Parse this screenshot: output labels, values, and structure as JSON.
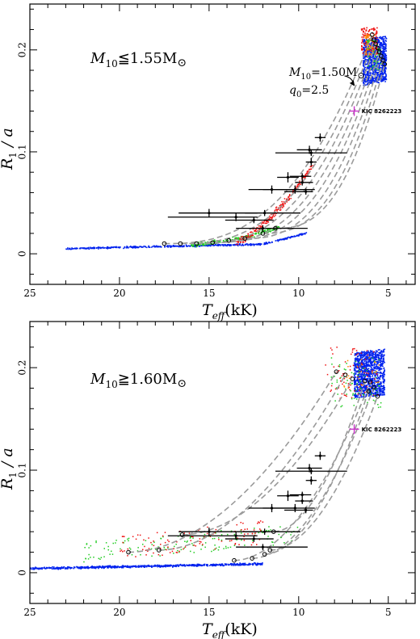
{
  "chart_data": [
    {
      "type": "scatter",
      "title_main": "M",
      "title_sub": "10",
      "title_rest": "≦1.55M",
      "sun_symbol": "⊙",
      "xlabel_main": "T",
      "xlabel_sub": "eff",
      "xlabel_rest": "(kK)",
      "ylabel_main": "R",
      "ylabel_sub": "1",
      "ylabel_rest": " / a",
      "xlim": [
        25,
        3.5
      ],
      "ylim": [
        -0.03,
        0.245
      ],
      "x_ticks": [
        25,
        20,
        15,
        10,
        5
      ],
      "y_ticks": [
        0,
        0.1,
        0.2
      ],
      "x_tick_labels": [
        "25",
        "20",
        "15",
        "10",
        "5"
      ],
      "y_tick_labels": [
        "0",
        "0.1",
        "0.2"
      ],
      "model_annotation": {
        "line1_main": "M",
        "line1_sub": "10",
        "line1_rest": "=1.50M",
        "line2_main": "q",
        "line2_sub": "0",
        "line2_rest": "=2.5",
        "arrow_to": [
          6.9,
          0.165
        ]
      },
      "special_star": {
        "name": "KIC 8262223",
        "x": 6.9,
        "y": 0.14,
        "color": "#cc33cc"
      },
      "observed_stars": [
        {
          "x": 15.0,
          "y": 0.04,
          "xerr_lo": 1.7,
          "xerr_hi": 2.7,
          "yerr": 0.004
        },
        {
          "x": 13.5,
          "y": 0.036,
          "xerr_lo": 3.8,
          "xerr_hi": 1.2,
          "yerr": 0.004
        },
        {
          "x": 12.5,
          "y": 0.033,
          "xerr_lo": 1.6,
          "xerr_hi": 1.1,
          "yerr": 0.003
        },
        {
          "x": 12.0,
          "y": 0.025,
          "xerr_lo": 1.5,
          "xerr_hi": 2.5,
          "yerr": 0.003
        },
        {
          "x": 11.9,
          "y": 0.04,
          "xerr_lo": 1.1,
          "xerr_hi": 2.0,
          "yerr": 0.003
        },
        {
          "x": 11.5,
          "y": 0.063,
          "xerr_lo": 1.3,
          "xerr_hi": 1.3,
          "yerr": 0.004
        },
        {
          "x": 10.6,
          "y": 0.075,
          "xerr_lo": 0.6,
          "xerr_hi": 0.6,
          "yerr": 0.005
        },
        {
          "x": 10.2,
          "y": 0.063,
          "xerr_lo": 1.8,
          "xerr_hi": 1.1,
          "yerr": 0.004
        },
        {
          "x": 9.8,
          "y": 0.076,
          "xerr_lo": 0.7,
          "xerr_hi": 0.5,
          "yerr": 0.003
        },
        {
          "x": 9.6,
          "y": 0.061,
          "xerr_lo": 1.2,
          "xerr_hi": 0.4,
          "yerr": 0.003
        },
        {
          "x": 9.8,
          "y": 0.07,
          "xerr_lo": 0.4,
          "xerr_hi": 0.6,
          "yerr": 0.003
        },
        {
          "x": 9.3,
          "y": 0.09,
          "xerr_lo": 0.3,
          "xerr_hi": 0.3,
          "yerr": 0.004
        },
        {
          "x": 9.3,
          "y": 0.099,
          "xerr_lo": 2.0,
          "xerr_hi": 2.0,
          "yerr": 0.003
        },
        {
          "x": 9.4,
          "y": 0.102,
          "xerr_lo": 0.7,
          "xerr_hi": 0.7,
          "yerr": 0.004
        },
        {
          "x": 8.8,
          "y": 0.114,
          "xerr_lo": 0.3,
          "xerr_hi": 0.3,
          "yerr": 0.004
        }
      ],
      "model_tracks": [
        {
          "start": [
            17.5,
            0.01
          ],
          "end": [
            5.9,
            0.215
          ]
        },
        {
          "start": [
            16.6,
            0.01
          ],
          "end": [
            5.8,
            0.21
          ]
        },
        {
          "start": [
            15.7,
            0.01
          ],
          "end": [
            5.7,
            0.206
          ]
        },
        {
          "start": [
            14.8,
            0.011
          ],
          "end": [
            5.6,
            0.202
          ]
        },
        {
          "start": [
            13.9,
            0.013
          ],
          "end": [
            5.5,
            0.198
          ]
        },
        {
          "start": [
            13.0,
            0.015
          ],
          "end": [
            5.4,
            0.194
          ]
        },
        {
          "start": [
            12.0,
            0.02
          ],
          "end": [
            5.3,
            0.19
          ]
        },
        {
          "start": [
            11.3,
            0.025
          ],
          "end": [
            5.2,
            0.186
          ]
        }
      ],
      "population_colors": [
        "#0022ee",
        "#ee1111",
        "#22cc22",
        "#ff8800"
      ]
    },
    {
      "type": "scatter",
      "title_main": "M",
      "title_sub": "10",
      "title_rest": "≧1.60M",
      "sun_symbol": "⊙",
      "xlabel_main": "T",
      "xlabel_sub": "eff",
      "xlabel_rest": "(kK)",
      "ylabel_main": "R",
      "ylabel_sub": "1",
      "ylabel_rest": " / a",
      "xlim": [
        25,
        3.5
      ],
      "ylim": [
        -0.03,
        0.245
      ],
      "x_ticks": [
        25,
        20,
        15,
        10,
        5
      ],
      "y_ticks": [
        0,
        0.1,
        0.2
      ],
      "x_tick_labels": [
        "25",
        "20",
        "15",
        "10",
        "5"
      ],
      "y_tick_labels": [
        "0",
        "0.1",
        "0.2"
      ],
      "special_star": {
        "name": "KIC 8262223",
        "x": 6.9,
        "y": 0.14,
        "color": "#cc33cc"
      },
      "observed_stars": [
        {
          "x": 15.0,
          "y": 0.04,
          "xerr_lo": 1.7,
          "xerr_hi": 2.7,
          "yerr": 0.004
        },
        {
          "x": 13.5,
          "y": 0.036,
          "xerr_lo": 3.8,
          "xerr_hi": 1.2,
          "yerr": 0.004
        },
        {
          "x": 12.5,
          "y": 0.033,
          "xerr_lo": 1.6,
          "xerr_hi": 1.1,
          "yerr": 0.003
        },
        {
          "x": 12.0,
          "y": 0.025,
          "xerr_lo": 1.5,
          "xerr_hi": 2.5,
          "yerr": 0.003
        },
        {
          "x": 11.9,
          "y": 0.04,
          "xerr_lo": 1.1,
          "xerr_hi": 2.0,
          "yerr": 0.003
        },
        {
          "x": 11.5,
          "y": 0.063,
          "xerr_lo": 1.3,
          "xerr_hi": 1.3,
          "yerr": 0.004
        },
        {
          "x": 10.6,
          "y": 0.075,
          "xerr_lo": 0.6,
          "xerr_hi": 0.6,
          "yerr": 0.005
        },
        {
          "x": 10.2,
          "y": 0.063,
          "xerr_lo": 1.8,
          "xerr_hi": 1.1,
          "yerr": 0.004
        },
        {
          "x": 9.8,
          "y": 0.076,
          "xerr_lo": 0.7,
          "xerr_hi": 0.5,
          "yerr": 0.003
        },
        {
          "x": 9.6,
          "y": 0.061,
          "xerr_lo": 1.2,
          "xerr_hi": 0.4,
          "yerr": 0.003
        },
        {
          "x": 9.8,
          "y": 0.07,
          "xerr_lo": 0.4,
          "xerr_hi": 0.6,
          "yerr": 0.003
        },
        {
          "x": 9.3,
          "y": 0.09,
          "xerr_lo": 0.3,
          "xerr_hi": 0.3,
          "yerr": 0.004
        },
        {
          "x": 9.3,
          "y": 0.099,
          "xerr_lo": 2.0,
          "xerr_hi": 2.0,
          "yerr": 0.003
        },
        {
          "x": 9.4,
          "y": 0.102,
          "xerr_lo": 0.7,
          "xerr_hi": 0.7,
          "yerr": 0.004
        },
        {
          "x": 8.8,
          "y": 0.114,
          "xerr_lo": 0.3,
          "xerr_hi": 0.3,
          "yerr": 0.004
        }
      ],
      "model_tracks": [
        {
          "start": [
            19.5,
            0.02
          ],
          "end": [
            7.9,
            0.196
          ]
        },
        {
          "start": [
            17.8,
            0.022
          ],
          "end": [
            7.4,
            0.193
          ]
        },
        {
          "start": [
            16.5,
            0.037
          ],
          "end": [
            7.0,
            0.189
          ]
        },
        {
          "start": [
            13.6,
            0.012
          ],
          "end": [
            6.0,
            0.186
          ]
        },
        {
          "start": [
            12.6,
            0.014
          ],
          "end": [
            5.8,
            0.181
          ]
        },
        {
          "start": [
            11.9,
            0.018
          ],
          "end": [
            6.1,
            0.177
          ]
        },
        {
          "start": [
            11.6,
            0.022
          ],
          "end": [
            5.6,
            0.172
          ]
        },
        {
          "start": [
            11.4,
            0.04
          ],
          "end": [
            6.3,
            0.187
          ]
        }
      ],
      "population_colors": [
        "#0022ee",
        "#ee1111",
        "#22cc22",
        "#ff8800"
      ]
    }
  ]
}
